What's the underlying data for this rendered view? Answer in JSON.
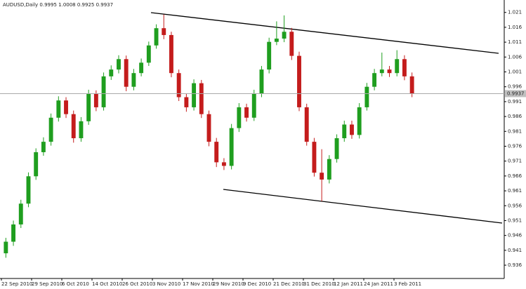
{
  "chart_data": {
    "type": "candlestick",
    "title": "AUDUSD,Daily 0.9995 1.0008 0.9925 0.9937",
    "up_color": "#1f9e1f",
    "down_color": "#c41c1c",
    "open": [
      0.94,
      0.9439,
      0.9497,
      0.9567,
      0.9659,
      0.974,
      0.9775,
      0.9856,
      0.9914,
      0.9868,
      0.9787,
      0.9844,
      0.9937,
      0.9891,
      0.9995,
      1.0018,
      1.0053,
      0.996,
      1.0006,
      1.0041,
      1.0099,
      1.0157,
      1.0134,
      1.0006,
      0.9925,
      0.9891,
      0.9972,
      0.9868,
      0.9775,
      0.9706,
      0.9694,
      0.9821,
      0.9891,
      0.9856,
      0.9937,
      1.0018,
      1.0111,
      1.0122,
      1.0145,
      1.0064,
      0.9891,
      0.9775,
      0.9671,
      0.9648,
      0.9717,
      0.9787,
      0.9833,
      0.9798,
      0.9891,
      0.996,
      1.0006,
      1.0018,
      1.0006,
      1.0053,
      0.9995
    ],
    "high": [
      0.9452,
      0.951,
      0.958,
      0.9672,
      0.9753,
      0.979,
      0.987,
      0.9928,
      0.9925,
      0.988,
      0.9858,
      0.995,
      0.9948,
      1.0008,
      1.0032,
      1.0066,
      1.0065,
      1.002,
      1.0055,
      1.0112,
      1.017,
      1.0203,
      1.0145,
      1.0018,
      0.9938,
      0.9985,
      0.9983,
      0.988,
      0.9788,
      0.972,
      0.9835,
      0.9905,
      0.9903,
      0.995,
      1.003,
      1.0125,
      1.018,
      1.02,
      1.0158,
      1.0078,
      0.9903,
      0.9788,
      0.975,
      0.973,
      0.98,
      0.9846,
      0.9846,
      0.9905,
      0.9973,
      1.002,
      1.0075,
      1.003,
      1.0083,
      1.0066,
      1.0008
    ],
    "low": [
      0.9385,
      0.9425,
      0.9485,
      0.9555,
      0.9647,
      0.9728,
      0.9762,
      0.9843,
      0.9855,
      0.9772,
      0.9775,
      0.9832,
      0.9878,
      0.988,
      0.9983,
      1.0005,
      0.9945,
      0.9948,
      0.9995,
      1.003,
      1.0088,
      1.012,
      0.9992,
      0.9912,
      0.9876,
      0.988,
      0.9855,
      0.976,
      0.969,
      0.968,
      0.9682,
      0.9808,
      0.9843,
      0.9845,
      0.9925,
      1.0005,
      1.01,
      1.011,
      1.005,
      0.9878,
      0.9762,
      0.9658,
      0.9575,
      0.9635,
      0.9705,
      0.9775,
      0.9785,
      0.9786,
      0.988,
      0.9948,
      0.9995,
      0.9993,
      0.9995,
      0.9982,
      0.9925
    ],
    "close": [
      0.9439,
      0.9497,
      0.9567,
      0.9659,
      0.974,
      0.9775,
      0.9856,
      0.9914,
      0.9868,
      0.9787,
      0.9844,
      0.9937,
      0.9891,
      0.9995,
      1.0018,
      1.0053,
      0.996,
      1.0006,
      1.0041,
      1.0099,
      1.0157,
      1.0134,
      1.0006,
      0.9925,
      0.9891,
      0.9972,
      0.9868,
      0.9775,
      0.9706,
      0.9694,
      0.9821,
      0.9891,
      0.9856,
      0.9937,
      1.0018,
      1.0111,
      1.0122,
      1.0145,
      1.0064,
      0.9891,
      0.9775,
      0.9671,
      0.9648,
      0.9717,
      0.9787,
      0.9833,
      0.9798,
      0.9891,
      0.996,
      1.0006,
      1.0018,
      1.0006,
      1.0053,
      0.9995,
      0.9937
    ],
    "last_price": 0.9937,
    "x_labels": [
      "22 Sep 2010",
      "29 Sep 2010",
      "6 Oct 2010",
      "14 Oct 2010",
      "26 Oct 2010",
      "3 Nov 2010",
      "17 Nov 2010",
      "29 Nov 2010",
      "9 Dec 2010",
      "21 Dec 2010",
      "31 Dec 2010",
      "12 Jan 2011",
      "24 Jan 2011",
      "3 Feb 2011"
    ],
    "ylim": [
      0.932,
      1.024
    ],
    "yticks": [
      0.936,
      0.941,
      0.946,
      0.951,
      0.956,
      0.961,
      0.966,
      0.971,
      0.976,
      0.981,
      0.986,
      0.991,
      0.996,
      1.001,
      1.006,
      1.011,
      1.016,
      1.021
    ]
  }
}
